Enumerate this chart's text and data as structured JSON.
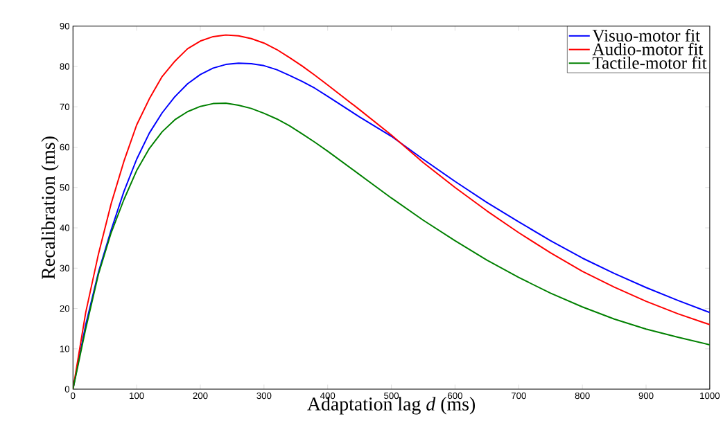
{
  "chart_data": {
    "type": "line",
    "xlabel": "Adaptation lag *d* (ms)",
    "ylabel": "Recalibration (ms)",
    "x": [
      0,
      20,
      40,
      60,
      80,
      100,
      120,
      140,
      160,
      180,
      200,
      220,
      240,
      260,
      280,
      300,
      320,
      340,
      360,
      380,
      400,
      450,
      500,
      550,
      600,
      650,
      700,
      750,
      800,
      850,
      900,
      950,
      1000
    ],
    "series": [
      {
        "name": "Visuo-motor fit",
        "color": "#0000ff",
        "values": [
          0,
          16,
          29,
          39.5,
          49,
          57,
          63.5,
          68.5,
          72.5,
          75.7,
          78,
          79.6,
          80.5,
          80.8,
          80.7,
          80.2,
          79.2,
          77.8,
          76.3,
          74.6,
          72.6,
          67.5,
          62.7,
          57,
          51.5,
          46.3,
          41.5,
          36.8,
          32.5,
          28.7,
          25.2,
          22,
          19
        ]
      },
      {
        "name": "Audio-motor fit",
        "color": "#ff0000",
        "values": [
          0,
          19,
          33.5,
          46,
          56.5,
          65.5,
          72,
          77.5,
          81.3,
          84.4,
          86.3,
          87.4,
          87.8,
          87.6,
          86.9,
          85.8,
          84.2,
          82.2,
          80.1,
          77.8,
          75.4,
          69.3,
          63,
          56.2,
          50,
          44.2,
          38.8,
          33.8,
          29.2,
          25.3,
          21.8,
          18.7,
          16
        ]
      },
      {
        "name": "Tactile-motor fit",
        "color": "#008000",
        "values": [
          0,
          15,
          28.5,
          38.8,
          47,
          54.2,
          59.7,
          63.8,
          66.8,
          68.8,
          70.1,
          70.8,
          70.9,
          70.4,
          69.6,
          68.4,
          67,
          65.3,
          63.3,
          61.2,
          59,
          53.2,
          47.4,
          41.9,
          36.8,
          32,
          27.7,
          23.8,
          20.4,
          17.4,
          14.9,
          12.9,
          11
        ]
      }
    ],
    "xlim": [
      0,
      1000
    ],
    "ylim": [
      0,
      90
    ],
    "xticks": [
      0,
      100,
      200,
      300,
      400,
      500,
      600,
      700,
      800,
      900,
      1000
    ],
    "yticks": [
      0,
      10,
      20,
      30,
      40,
      50,
      60,
      70,
      80,
      90
    ],
    "legend": "top right",
    "marker": "none",
    "line_style": "solid"
  }
}
